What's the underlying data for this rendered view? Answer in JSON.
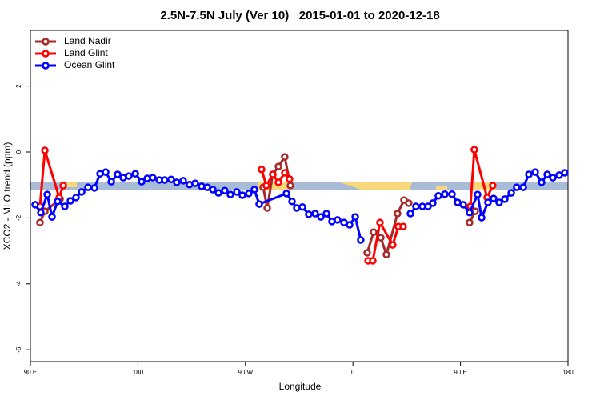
{
  "chart_data": {
    "type": "line",
    "title": "2.5N-7.5N July (Ver 10)   2015-01-01 to 2020-12-18",
    "x_label": "Longitude",
    "y_label": "XCO2 - MLO trend (ppm)",
    "xlim": [
      90,
      540
    ],
    "ylim": [
      -6.36,
      3.69
    ],
    "xticks": [
      {
        "value": 90,
        "label": "90 E"
      },
      180,
      {
        "value": 270,
        "label": "90 W"
      },
      {
        "value": 360,
        "label": "0"
      },
      {
        "value": 450,
        "label": "90 E"
      },
      {
        "value": 540,
        "label": "180"
      }
    ],
    "yticks": [
      -6,
      -4,
      -2,
      0,
      2
    ],
    "legend": "top-left",
    "series": [
      {
        "name": "Land Nadir",
        "color": "#a52a2a",
        "x": [
          98.0,
          102.1,
          114.8,
          200,
          284.9,
          288.2,
          292.9,
          297.6,
          302.9,
          307.6,
          340,
          371.9,
          377.3,
          383.3,
          388.0,
          397.3,
          402.7,
          406.7,
          430,
          457.6,
          462.3
        ],
        "values": [
          -2.14,
          -1.8,
          -1.43,
          null,
          -1.07,
          -1.7,
          -0.68,
          -0.44,
          -0.15,
          -1.02,
          null,
          -3.06,
          -2.43,
          -2.6,
          -3.11,
          -1.87,
          -1.46,
          -1.55,
          null,
          -2.14,
          -1.8
        ]
      },
      {
        "name": "Land Glint",
        "color": "#ff0000",
        "x": [
          98.0,
          102.1,
          114.1,
          117.5,
          200,
          283.5,
          287.5,
          292.9,
          297.6,
          302.9,
          306.9,
          340,
          372.6,
          376.6,
          382.6,
          393.3,
          398.0,
          402.0,
          430,
          458.3,
          461.6,
          472.3,
          477.0
        ],
        "values": [
          -1.65,
          0.05,
          -1.38,
          -1.02,
          null,
          -0.53,
          -1.02,
          -0.68,
          -0.92,
          -0.63,
          -0.82,
          null,
          -3.3,
          -3.3,
          -2.14,
          -2.82,
          -2.26,
          -2.26,
          null,
          -1.65,
          0.07,
          -1.38,
          -1.02
        ]
      },
      {
        "name": "Ocean Glint",
        "color": "#0000ff",
        "x": [
          94.0,
          98.7,
          104.1,
          108.1,
          112.8,
          118.8,
          123.5,
          128.2,
          132.9,
          138.2,
          143.6,
          148.3,
          153.0,
          157.7,
          163.0,
          167.7,
          172.4,
          177.8,
          183.1,
          187.8,
          192.4,
          197.8,
          202.5,
          207.8,
          212.5,
          217.9,
          223.2,
          227.9,
          233.3,
          238.0,
          242.7,
          247.4,
          252.7,
          257.4,
          262.8,
          267.4,
          272.8,
          277.5,
          281.5,
          304.3,
          309.0,
          313.0,
          317.7,
          323.0,
          328.4,
          333.1,
          337.8,
          342.4,
          347.1,
          352.5,
          357.2,
          361.9,
          366.5,
          390,
          408.1,
          412.7,
          418.1,
          422.8,
          426.8,
          431.5,
          436.9,
          442.9,
          447.6,
          452.3,
          457.6,
          464.3,
          467.7,
          473.0,
          477.7,
          482.4,
          487.1,
          492.5,
          497.1,
          502.5,
          507.2,
          512.5,
          517.9,
          522.6,
          527.3,
          532.6,
          537.3
        ],
        "values": [
          -1.6,
          -1.84,
          -1.29,
          -1.97,
          -1.5,
          -1.65,
          -1.48,
          -1.38,
          -1.21,
          -1.07,
          -1.09,
          -0.66,
          -0.61,
          -0.9,
          -0.68,
          -0.78,
          -0.73,
          -0.66,
          -0.9,
          -0.8,
          -0.78,
          -0.85,
          -0.85,
          -0.83,
          -0.92,
          -0.87,
          -0.99,
          -0.95,
          -1.04,
          -1.07,
          -1.14,
          -1.24,
          -1.17,
          -1.29,
          -1.21,
          -1.31,
          -1.26,
          -1.14,
          -1.58,
          -1.26,
          -1.5,
          -1.7,
          -1.67,
          -1.89,
          -1.87,
          -1.97,
          -1.87,
          -2.11,
          -2.06,
          -2.14,
          -2.21,
          -1.97,
          -2.67,
          null,
          -1.87,
          -1.65,
          -1.65,
          -1.65,
          -1.55,
          -1.33,
          -1.28,
          -1.28,
          -1.53,
          -1.6,
          -1.84,
          -1.29,
          -1.99,
          -1.53,
          -1.41,
          -1.53,
          -1.43,
          -1.24,
          -1.07,
          -1.07,
          -0.68,
          -0.61,
          -0.92,
          -0.68,
          -0.78,
          -0.7,
          -0.63
        ]
      }
    ]
  }
}
